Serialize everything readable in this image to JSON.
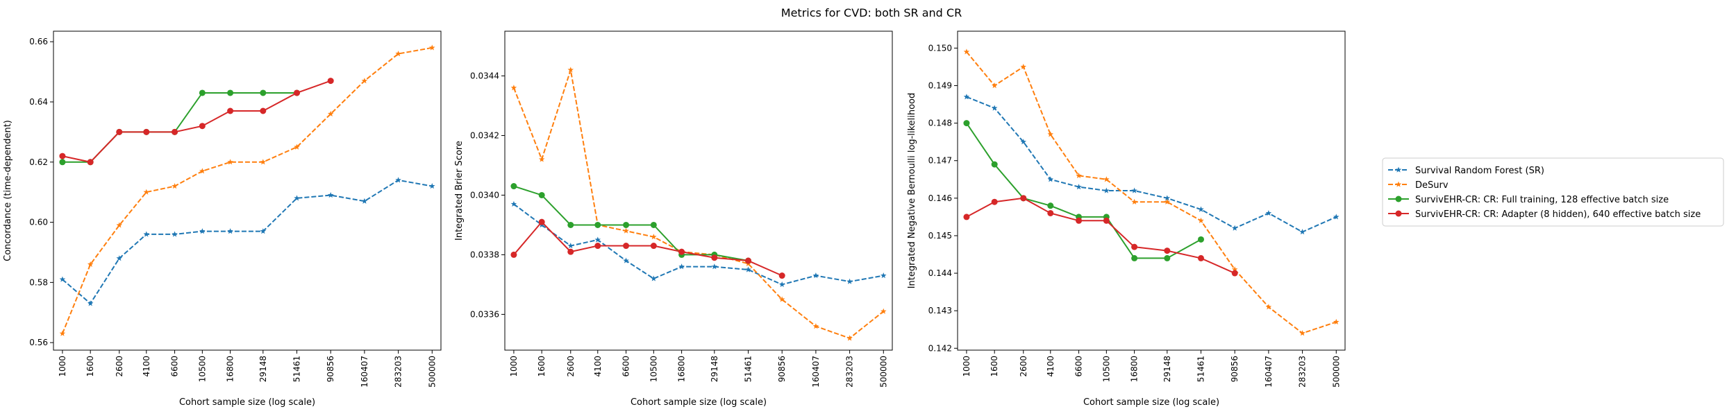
{
  "chart_data": {
    "suptitle": "Metrics for CVD: both SR and CR",
    "type": "line",
    "xlabel": "Cohort sample size (log scale)",
    "x": [
      1000,
      1600,
      2600,
      4100,
      6600,
      10500,
      16800,
      29148,
      51461,
      90856,
      160407,
      283203,
      500000
    ],
    "xtick_values": [
      1000,
      1600,
      2600,
      4100,
      6600,
      10500,
      16800,
      29148,
      51461,
      90856,
      160407,
      283203,
      500000
    ],
    "xtick_labels": [
      "1000",
      "1600",
      "2600",
      "4100",
      "6600",
      "10500",
      "16800",
      "29148",
      "51461",
      "90856",
      "160407",
      "283203",
      "500000"
    ],
    "legend": [
      {
        "name": "Survival Random Forest (SR)",
        "color": "#1f77b4",
        "dash": "dashed",
        "marker": "star"
      },
      {
        "name": "DeSurv",
        "color": "#ff7f0e",
        "dash": "dashed",
        "marker": "star"
      },
      {
        "name": "SurvivEHR-CR: CR: Full training, 128 effective batch size",
        "color": "#2ca02c",
        "dash": "solid",
        "marker": "circle"
      },
      {
        "name": "SurvivEHR-CR: CR: Adapter (8 hidden), 640 effective batch size",
        "color": "#d62728",
        "dash": "solid",
        "marker": "circle"
      }
    ],
    "legend_position": "right, outside",
    "panels": [
      {
        "ylabel": "Concordance (time-dependent)",
        "ylim": [
          0.5575,
          0.6635
        ],
        "yticks": [
          0.56,
          0.58,
          0.6,
          0.62,
          0.64,
          0.66
        ],
        "ytick_labels": [
          "0.56",
          "0.58",
          "0.60",
          "0.62",
          "0.64",
          "0.66"
        ],
        "series": [
          {
            "values": [
              0.581,
              0.573,
              0.588,
              0.596,
              0.596,
              0.597,
              0.597,
              0.597,
              0.608,
              0.609,
              0.607,
              0.614,
              0.612
            ]
          },
          {
            "values": [
              0.563,
              0.586,
              0.599,
              0.61,
              0.612,
              0.617,
              0.62,
              0.62,
              0.625,
              0.636,
              0.647,
              0.656,
              0.658
            ]
          },
          {
            "values": [
              0.62,
              0.62,
              0.63,
              0.63,
              0.63,
              0.643,
              0.643,
              0.643,
              0.643,
              null,
              null,
              null,
              null
            ]
          },
          {
            "values": [
              0.622,
              0.62,
              0.63,
              0.63,
              0.63,
              0.632,
              0.637,
              0.637,
              0.643,
              0.647,
              null,
              null,
              null
            ]
          }
        ]
      },
      {
        "ylabel": "Integrated Brier Score",
        "ylim": [
          0.03348,
          0.03455
        ],
        "yticks": [
          0.0336,
          0.0338,
          0.034,
          0.0342,
          0.0344
        ],
        "ytick_labels": [
          "0.0336",
          "0.0338",
          "0.0340",
          "0.0342",
          "0.0344"
        ],
        "series": [
          {
            "values": [
              0.03397,
              0.0339,
              0.03383,
              0.03385,
              0.03378,
              0.03372,
              0.03376,
              0.03376,
              0.03375,
              0.0337,
              0.03373,
              0.03371,
              0.03373
            ]
          },
          {
            "values": [
              0.03436,
              0.03412,
              0.03442,
              0.0339,
              0.03388,
              0.03386,
              0.03381,
              0.0338,
              0.03377,
              0.03365,
              0.03356,
              0.03352,
              0.03361
            ]
          },
          {
            "values": [
              0.03403,
              0.034,
              0.0339,
              0.0339,
              0.0339,
              0.0339,
              0.0338,
              0.0338,
              0.03378,
              null,
              null,
              null,
              null
            ]
          },
          {
            "values": [
              0.0338,
              0.03391,
              0.03381,
              0.03383,
              0.03383,
              0.03383,
              0.03381,
              0.03379,
              0.03378,
              0.03373,
              null,
              null,
              null
            ]
          }
        ]
      },
      {
        "ylabel": "Integrated Negative Bernoulli log-likelihood",
        "ylim": [
          0.14195,
          0.15045
        ],
        "yticks": [
          0.142,
          0.143,
          0.144,
          0.145,
          0.146,
          0.147,
          0.148,
          0.149,
          0.15
        ],
        "ytick_labels": [
          "0.142",
          "0.143",
          "0.144",
          "0.145",
          "0.146",
          "0.147",
          "0.148",
          "0.149",
          "0.150"
        ],
        "series": [
          {
            "values": [
              0.1487,
              0.1484,
              0.1475,
              0.1465,
              0.1463,
              0.1462,
              0.1462,
              0.146,
              0.1457,
              0.1452,
              0.1456,
              0.1451,
              0.1455
            ]
          },
          {
            "values": [
              0.1499,
              0.149,
              0.1495,
              0.1477,
              0.1466,
              0.1465,
              0.1459,
              0.1459,
              0.1454,
              0.1441,
              0.1431,
              0.1424,
              0.1427
            ]
          },
          {
            "values": [
              0.148,
              0.1469,
              0.146,
              0.1458,
              0.1455,
              0.1455,
              0.1444,
              0.1444,
              0.1449,
              null,
              null,
              null,
              null
            ]
          },
          {
            "values": [
              0.1455,
              0.1459,
              0.146,
              0.1456,
              0.1454,
              0.1454,
              0.1447,
              0.1446,
              0.1444,
              0.144,
              null,
              null,
              null
            ]
          }
        ]
      }
    ]
  }
}
